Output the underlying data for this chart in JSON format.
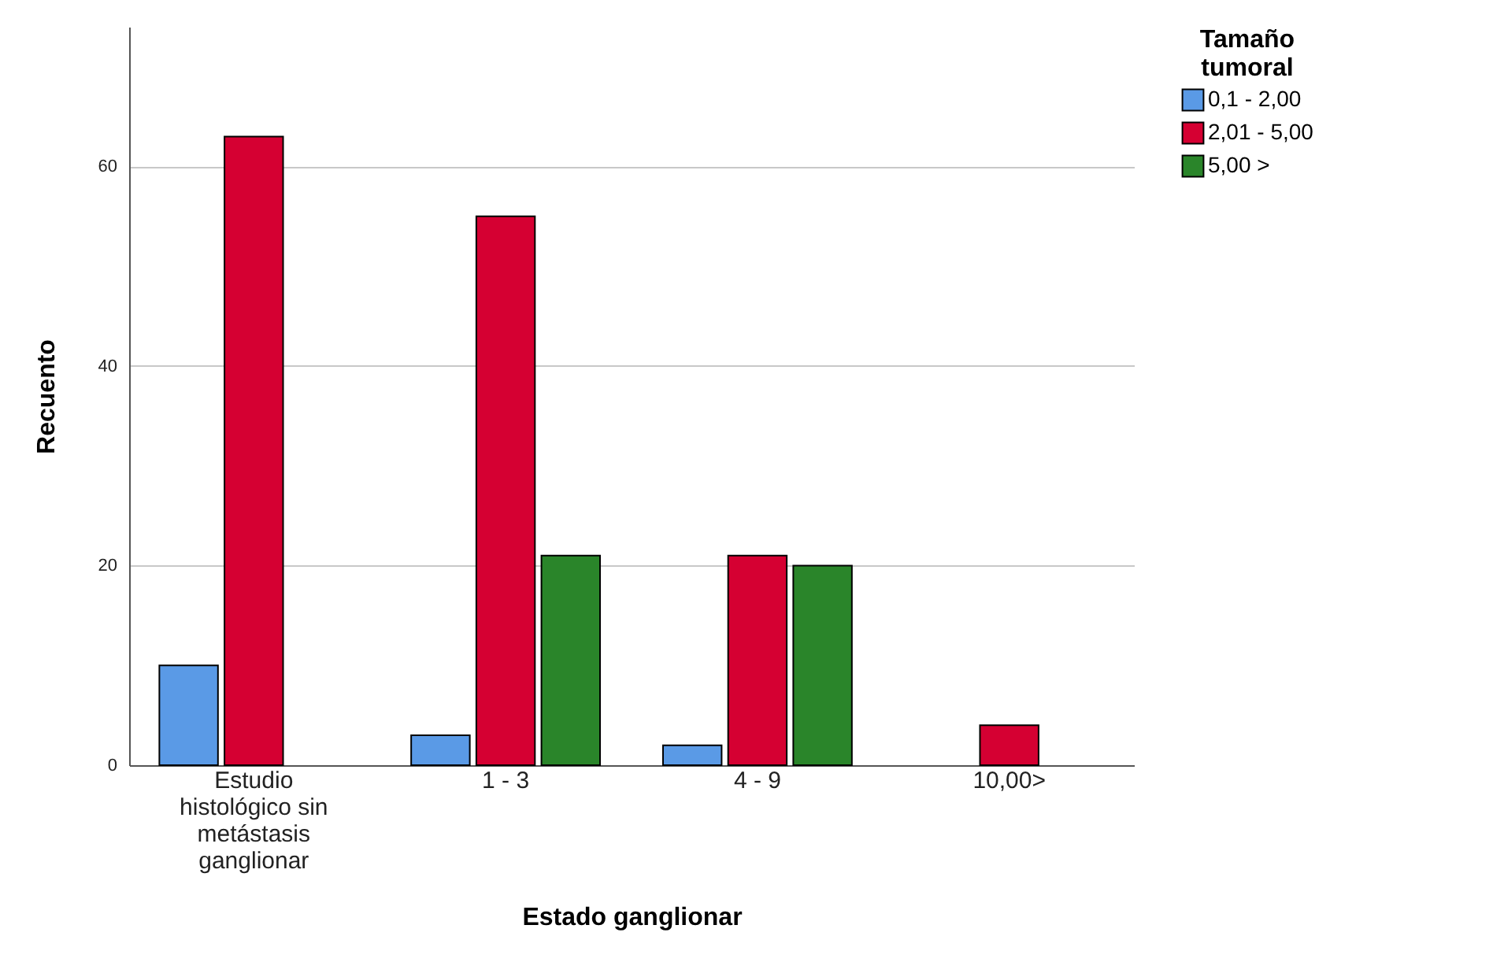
{
  "chart_data": {
    "type": "bar",
    "xlabel": "Estado ganglionar",
    "ylabel": "Recuento",
    "legend_title": "Tamaño tumoral",
    "categories": [
      "Estudio histológico sin metástasis ganglionar",
      "1 - 3",
      "4 - 9",
      "10,00>"
    ],
    "series": [
      {
        "name": "0,1 -  2,00",
        "color": "#5a9ae6",
        "values": [
          10,
          3,
          2,
          null
        ]
      },
      {
        "name": "2,01 - 5,00",
        "color": "#d50032",
        "values": [
          63,
          55,
          21,
          4
        ]
      },
      {
        "name": "5,00 >",
        "color": "#2a852a",
        "values": [
          null,
          21,
          20,
          null
        ]
      }
    ],
    "ylim": [
      0,
      74
    ],
    "yticks": [
      0,
      20,
      40,
      60
    ],
    "grid": "y",
    "legend": "right"
  }
}
